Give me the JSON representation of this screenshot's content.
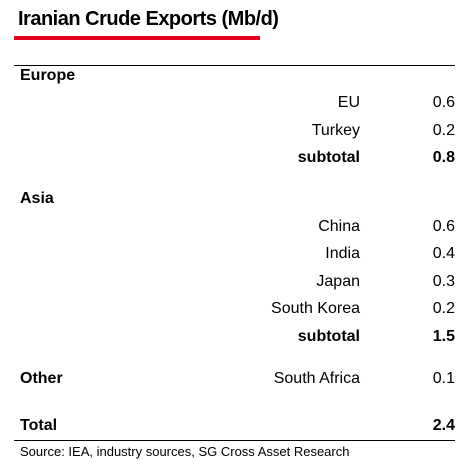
{
  "chart_data": {
    "type": "table",
    "title": "Iranian Crude Exports (Mb/d)",
    "accent_color": "#e3001b",
    "groups": [
      {
        "name": "Europe",
        "rows": [
          {
            "label": "EU",
            "value": "0.6"
          },
          {
            "label": "Turkey",
            "value": "0.2"
          }
        ],
        "subtotal": {
          "label": "subtotal",
          "value": "0.8"
        }
      },
      {
        "name": "Asia",
        "rows": [
          {
            "label": "China",
            "value": "0.6"
          },
          {
            "label": "India",
            "value": "0.4"
          },
          {
            "label": "Japan",
            "value": "0.3"
          },
          {
            "label": "South Korea",
            "value": "0.2"
          }
        ],
        "subtotal": {
          "label": "subtotal",
          "value": "1.5"
        }
      },
      {
        "name": "Other",
        "rows": [
          {
            "label": "South Africa",
            "value": "0.1"
          }
        ]
      }
    ],
    "total": {
      "label": "Total",
      "value": "2.4"
    },
    "source": "Source: IEA, industry sources, SG Cross Asset Research"
  }
}
